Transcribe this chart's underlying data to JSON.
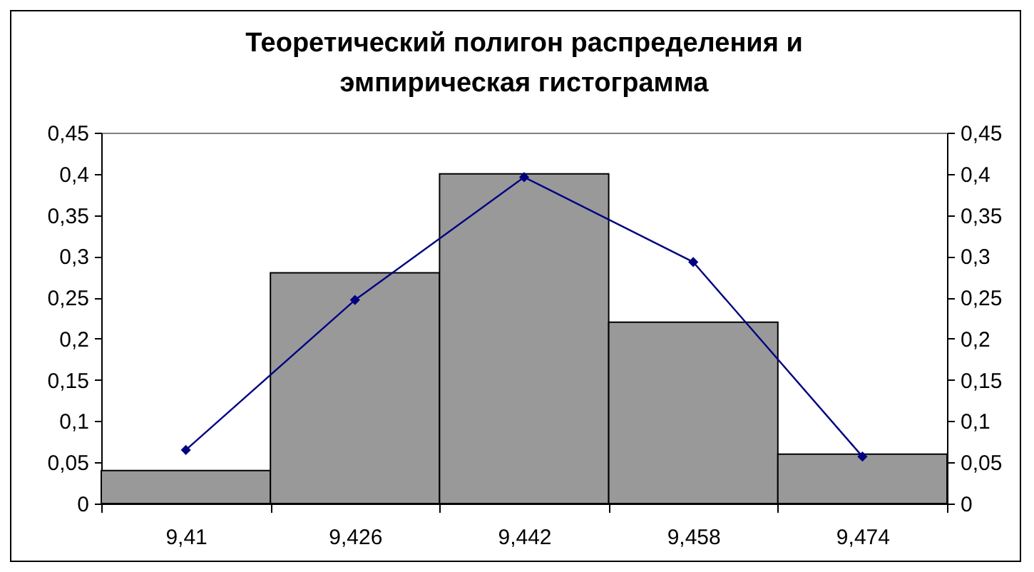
{
  "chart_data": {
    "type": "bar",
    "title": "Теоретический полигон распределения и\nэмпирическая гистограмма",
    "categories": [
      "9,41",
      "9,426",
      "9,442",
      "9,458",
      "9,474"
    ],
    "series": [
      {
        "color": "#999999",
        "values": [
          0.04,
          0.28,
          0.4,
          0.22,
          0.06
        ]
      },
      {
        "type": "line",
        "axis": "y2",
        "color": "#000080",
        "marker": "diamond",
        "values": [
          0.065,
          0.247,
          0.396,
          0.293,
          0.057
        ]
      }
    ],
    "ylim": [
      0,
      0.45
    ],
    "yticks": [
      {
        "value": 0,
        "label": "0"
      },
      {
        "value": 0.05,
        "label": "0,05"
      },
      {
        "value": 0.1,
        "label": "0,1"
      },
      {
        "value": 0.15,
        "label": "0,15"
      },
      {
        "value": 0.2,
        "label": "0,2"
      },
      {
        "value": 0.25,
        "label": "0,25"
      },
      {
        "value": 0.3,
        "label": "0,3"
      },
      {
        "value": 0.35,
        "label": "0,35"
      },
      {
        "value": 0.4,
        "label": "0,4"
      },
      {
        "value": 0.45,
        "label": "0,45"
      }
    ],
    "y2lim": [
      0,
      0.45
    ],
    "y2ticks": [
      {
        "value": 0,
        "label": "0"
      },
      {
        "value": 0.05,
        "label": "0,05"
      },
      {
        "value": 0.1,
        "label": "0,1"
      },
      {
        "value": 0.15,
        "label": "0,15"
      },
      {
        "value": 0.2,
        "label": "0,2"
      },
      {
        "value": 0.25,
        "label": "0,25"
      },
      {
        "value": 0.3,
        "label": "0,3"
      },
      {
        "value": 0.35,
        "label": "0,35"
      },
      {
        "value": 0.4,
        "label": "0,4"
      },
      {
        "value": 0.45,
        "label": "0,45"
      }
    ],
    "grid": false
  }
}
